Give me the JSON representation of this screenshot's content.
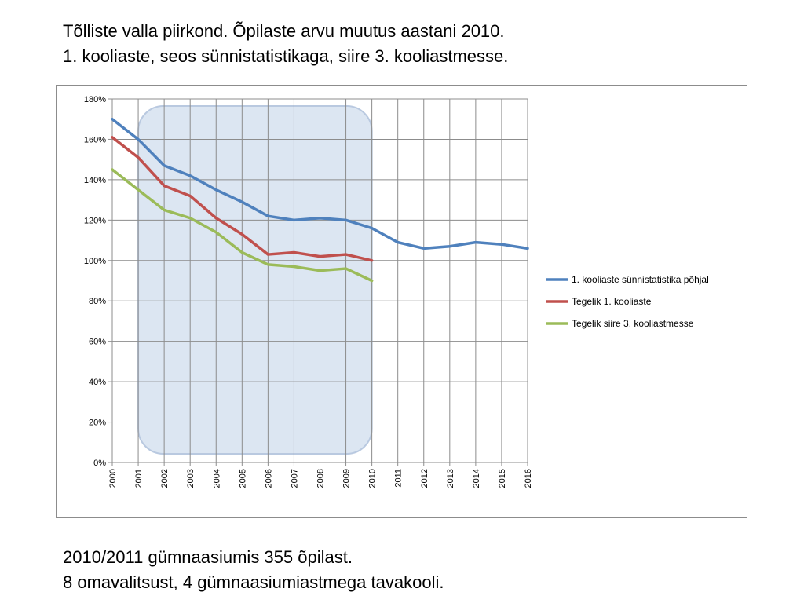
{
  "heading": {
    "line1": "Tõlliste valla piirkond. Õpilaste arvu muutus aastani 2010.",
    "line2": "1. kooliaste, seos sünnistatistikaga, siire 3. kooliastmesse."
  },
  "footer": {
    "line1": "2010/2011 gümnaasiumis 355 õpilast.",
    "line2": "8 omavalitsust, 4 gümnaasiumiastmega tavakooli."
  },
  "chart_data": {
    "type": "line",
    "title": "",
    "xlabel": "",
    "ylabel": "",
    "categories": [
      "2000",
      "2001",
      "2002",
      "2003",
      "2004",
      "2005",
      "2006",
      "2007",
      "2008",
      "2009",
      "2010",
      "2011",
      "2012",
      "2013",
      "2014",
      "2015",
      "2016"
    ],
    "y_ticks": [
      "0%",
      "20%",
      "40%",
      "60%",
      "80%",
      "100%",
      "120%",
      "140%",
      "160%",
      "180%"
    ],
    "ylim": [
      0,
      180
    ],
    "y_unit": "%",
    "grid": true,
    "x_tick_rotation": "vertical",
    "legend_position": "right",
    "highlight_region": {
      "x_from": "2001",
      "x_to": "2010",
      "color": "#dce6f2",
      "border_color": "#b9c9e0"
    },
    "series": [
      {
        "name": "1. kooliaste sünnistatistika põhjal",
        "color": "#4f81bd",
        "values": [
          170,
          160,
          147,
          142,
          135,
          129,
          122,
          120,
          121,
          120,
          116,
          109,
          106,
          107,
          109,
          108,
          106
        ]
      },
      {
        "name": "Tegelik 1. kooliaste",
        "color": "#c0504d",
        "values": [
          161,
          151,
          137,
          132,
          121,
          113,
          103,
          104,
          102,
          103,
          100,
          null,
          null,
          null,
          null,
          null,
          null
        ]
      },
      {
        "name": "Tegelik siire 3. kooliastmesse",
        "color": "#9bbb59",
        "values": [
          145,
          135,
          125,
          121,
          114,
          104,
          98,
          97,
          95,
          96,
          90,
          null,
          null,
          null,
          null,
          null,
          null
        ]
      }
    ]
  }
}
